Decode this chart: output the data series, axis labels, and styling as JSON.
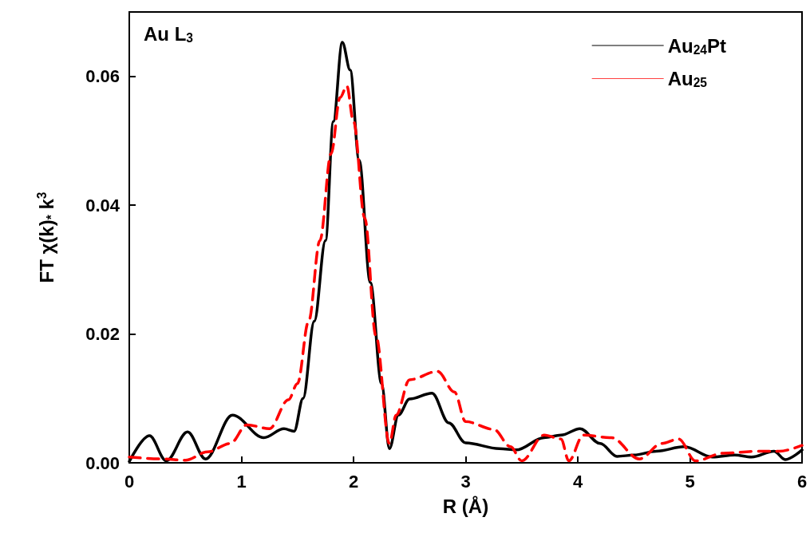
{
  "chart_data": {
    "type": "line",
    "xlabel": "R (Å)",
    "ylabel": "FT χ(k)$_{*}$ k$^{3}$",
    "annotations": [
      "Au L$_{3}$"
    ],
    "xlim": [
      0,
      6
    ],
    "xticks": [
      0,
      1,
      2,
      3,
      4,
      5,
      6
    ],
    "ylim": [
      0,
      0.07
    ],
    "yticks": [
      {
        "value": 0,
        "label": "0.00"
      },
      {
        "value": 0.02,
        "label": "0.02"
      },
      {
        "value": 0.04,
        "label": "0.04"
      },
      {
        "value": 0.06,
        "label": "0.06"
      }
    ],
    "grid": false,
    "legend": "top right",
    "marker": "none",
    "series": [
      {
        "name": "Au$_{24}$Pt",
        "color": "#000000",
        "line_style": "solid",
        "x": [
          0,
          0.18,
          0.33,
          0.52,
          0.68,
          0.92,
          1.2,
          1.38,
          1.47,
          1.55,
          1.65,
          1.75,
          1.82,
          1.9,
          1.97,
          2.05,
          2.15,
          2.25,
          2.32,
          2.4,
          2.5,
          2.7,
          2.85,
          3.0,
          3.3,
          3.45,
          3.7,
          3.85,
          4.02,
          4.2,
          4.35,
          4.5,
          4.7,
          4.95,
          5.2,
          5.4,
          5.55,
          5.75,
          5.85,
          6.0
        ],
        "values": [
          0.0002,
          0.0042,
          0.0003,
          0.0048,
          0.0006,
          0.0074,
          0.0039,
          0.0053,
          0.0049,
          0.01,
          0.022,
          0.0345,
          0.053,
          0.0653,
          0.061,
          0.047,
          0.028,
          0.0123,
          0.0022,
          0.0074,
          0.0099,
          0.0108,
          0.0062,
          0.0031,
          0.0022,
          0.002,
          0.0039,
          0.0043,
          0.0053,
          0.003,
          0.001,
          0.0012,
          0.0018,
          0.0025,
          0.0009,
          0.0012,
          0.0009,
          0.0018,
          0.0005,
          0.002
        ]
      },
      {
        "name": "Au$_{25}$",
        "color": "#ff0000",
        "line_style": "dashed",
        "x": [
          0,
          0.3,
          0.5,
          0.7,
          0.9,
          1.05,
          1.25,
          1.42,
          1.5,
          1.6,
          1.7,
          1.8,
          1.88,
          1.94,
          2.0,
          2.1,
          2.2,
          2.32,
          2.38,
          2.5,
          2.75,
          2.9,
          3.0,
          3.25,
          3.4,
          3.5,
          3.7,
          3.85,
          3.92,
          4.05,
          4.3,
          4.55,
          4.75,
          4.9,
          5.05,
          5.3,
          5.6,
          5.8,
          6.0
        ],
        "values": [
          0.0009,
          0.0006,
          0.0004,
          0.0017,
          0.003,
          0.0059,
          0.0053,
          0.0098,
          0.0123,
          0.022,
          0.0345,
          0.048,
          0.0567,
          0.0585,
          0.053,
          0.038,
          0.0197,
          0.003,
          0.0074,
          0.0129,
          0.0142,
          0.011,
          0.0064,
          0.0052,
          0.0025,
          0.0003,
          0.0043,
          0.0037,
          0.0003,
          0.0043,
          0.0039,
          0.0006,
          0.003,
          0.0037,
          0.0003,
          0.0015,
          0.0018,
          0.0018,
          0.0027
        ]
      }
    ]
  }
}
